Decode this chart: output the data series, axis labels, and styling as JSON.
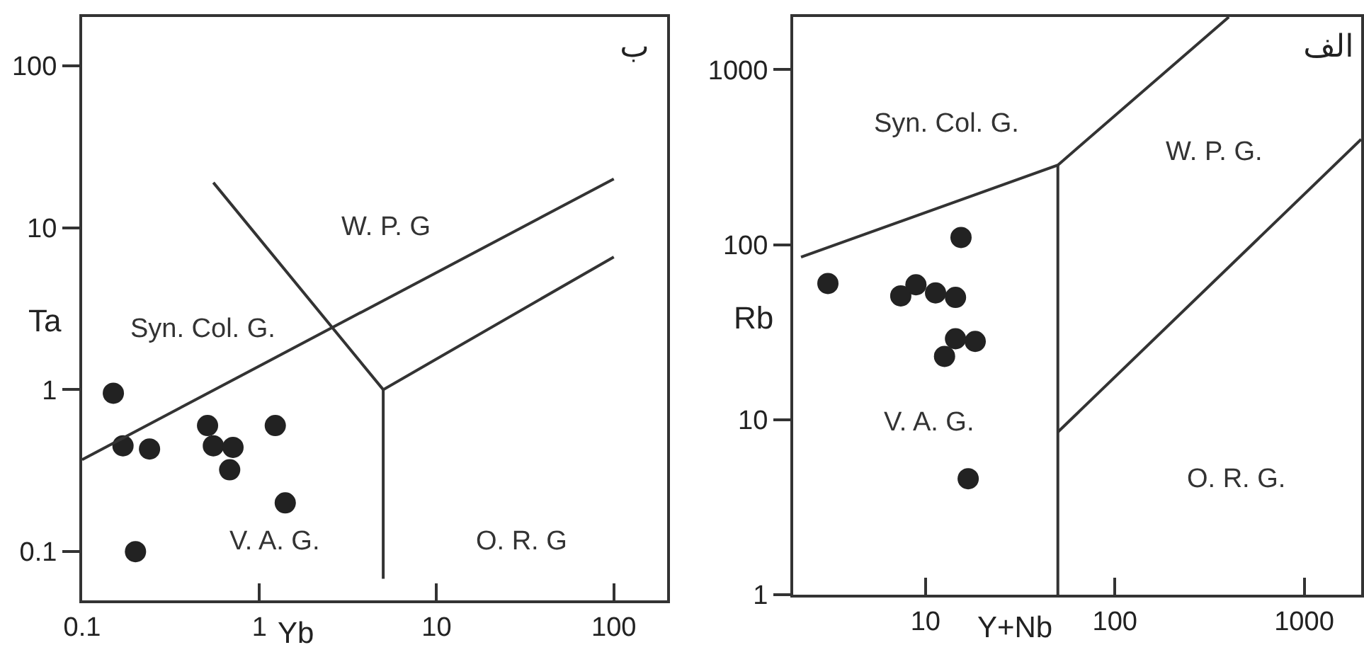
{
  "chart_data": [
    {
      "type": "scatter",
      "title": "ب",
      "xlabel": "Yb",
      "ylabel": "Ta",
      "log": "xy",
      "grid": false,
      "xlim": [
        0.1,
        200
      ],
      "ylim": [
        0.05,
        200
      ],
      "xticks": [
        0.1,
        1,
        10,
        100
      ],
      "yticks": [
        0.1,
        1,
        10,
        100
      ],
      "series": [
        {
          "marker": "circle",
          "color": "#222222",
          "x": [
            0.15,
            0.17,
            0.24,
            0.51,
            0.55,
            0.71,
            0.68,
            1.23,
            1.4,
            0.2
          ],
          "values": [
            0.95,
            0.45,
            0.43,
            0.6,
            0.45,
            0.44,
            0.32,
            0.6,
            0.2,
            0.1
          ]
        },
        {
          "type": "line",
          "marker": "none",
          "color": "#333333",
          "x": [
            0.1,
            100
          ],
          "values": [
            0.37,
            20
          ]
        },
        {
          "type": "line",
          "marker": "none",
          "color": "#333333",
          "x": [
            0.55,
            5,
            100
          ],
          "values": [
            19,
            1,
            6.6
          ]
        },
        {
          "type": "line",
          "marker": "none",
          "color": "#333333",
          "x": [
            5,
            5
          ],
          "values": [
            1,
            0.068
          ]
        }
      ],
      "annotations": [
        "W. P. G",
        "Syn. Col. G.",
        "V. A. G.",
        "O. R. G"
      ]
    },
    {
      "type": "scatter",
      "title": "الف",
      "xlabel": "Y+Nb",
      "ylabel": "Rb",
      "log": "xy",
      "grid": false,
      "xlim": [
        2,
        2000
      ],
      "ylim": [
        1,
        2000
      ],
      "xticks": [
        10,
        100,
        1000
      ],
      "yticks": [
        1,
        10,
        100,
        1000
      ],
      "series": [
        {
          "marker": "circle",
          "color": "#222222",
          "x": [
            3.05,
            15.4,
            7.4,
            8.9,
            11.3,
            14.4,
            14.4,
            18.3,
            12.6,
            16.8
          ],
          "values": [
            60,
            110,
            51,
            59,
            53,
            50,
            29,
            28,
            23,
            4.6
          ]
        },
        {
          "type": "line",
          "marker": "none",
          "color": "#333333",
          "x": [
            2.2,
            50,
            400
          ],
          "values": [
            85,
            285,
            2000
          ]
        },
        {
          "type": "line",
          "marker": "none",
          "color": "#333333",
          "x": [
            50,
            50
          ],
          "values": [
            285,
            1
          ]
        },
        {
          "type": "line",
          "marker": "none",
          "color": "#333333",
          "x": [
            50,
            2000
          ],
          "values": [
            8.5,
            400
          ]
        }
      ],
      "annotations": [
        "Syn. Col. G.",
        "W. P. G.",
        "V. A. G.",
        "O. R. G."
      ]
    }
  ]
}
